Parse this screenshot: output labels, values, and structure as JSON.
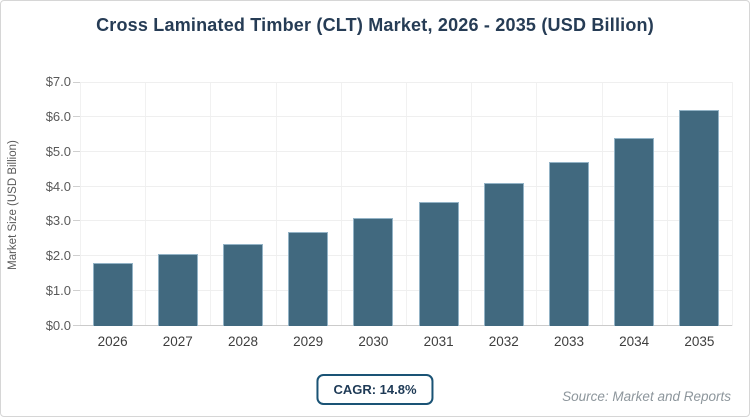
{
  "title": "Cross Laminated Timber (CLT) Market, 2026 - 2035 (USD Billion)",
  "chart_data": {
    "type": "bar",
    "title": "Cross Laminated Timber (CLT) Market, 2026 - 2035 (USD Billion)",
    "categories": [
      "2026",
      "2027",
      "2028",
      "2029",
      "2030",
      "2031",
      "2032",
      "2033",
      "2034",
      "2035"
    ],
    "values": [
      1.8,
      2.06,
      2.36,
      2.71,
      3.11,
      3.57,
      4.1,
      4.71,
      5.4,
      6.2
    ],
    "xlabel": "",
    "ylabel": "Market Size (USD Billion)",
    "ylim": [
      0,
      7
    ],
    "ytick_step": 1,
    "ytick_labels": [
      "$0.0",
      "$1.0",
      "$2.0",
      "$3.0",
      "$4.0",
      "$5.0",
      "$6.0",
      "$7.0"
    ],
    "grid": "horizontal and vertical band-edge gridlines, light gray",
    "legend": "none",
    "annotations": [
      "CAGR: 14.8%"
    ]
  },
  "footer": {
    "cagr_label": "CAGR: 14.8%",
    "source": "Source: Market and Reports"
  },
  "colors": {
    "bar_fill": "#41697f",
    "bar_stroke": "#93b3c6",
    "title_text": "#263c55",
    "axis_text": "#595959",
    "x_label_text": "#3e3e3e",
    "gridline": "#efefef",
    "axis_line": "#cbcbcb",
    "badge_border": "#1a5375",
    "badge_text": "#1e3a56",
    "source_text": "#8d969c",
    "background": "#ffffff"
  }
}
